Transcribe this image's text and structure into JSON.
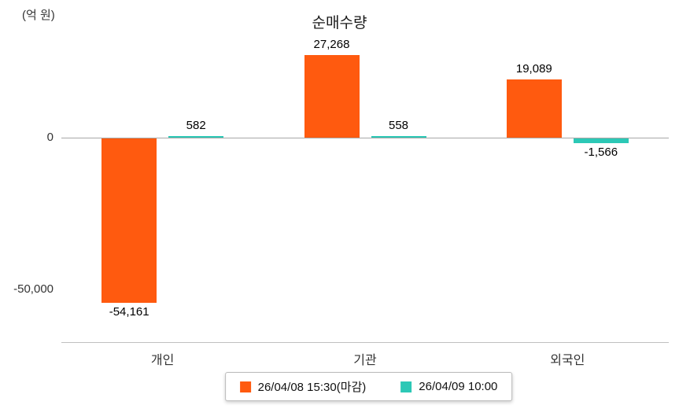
{
  "chart_data": {
    "type": "bar",
    "title": "순매수량",
    "unit_label": "(억 원)",
    "categories": [
      "개인",
      "기관",
      "외국인"
    ],
    "series": [
      {
        "name": "26/04/08 15:30(마감)",
        "color": "#ff5a0f",
        "values": [
          -54161,
          27268,
          19089
        ]
      },
      {
        "name": "26/04/09 10:00",
        "color": "#2cc8b6",
        "values": [
          582,
          558,
          -1566
        ]
      }
    ],
    "value_labels": [
      [
        "-54,161",
        "27,268",
        "19,089"
      ],
      [
        "582",
        "558",
        "-1,566"
      ]
    ],
    "y_ticks": [
      {
        "value": 0,
        "label": "0"
      },
      {
        "value": -50000,
        "label": "-50,000"
      }
    ],
    "ylim": [
      -60000,
      35000
    ],
    "grid": false,
    "legend_position": "bottom"
  }
}
